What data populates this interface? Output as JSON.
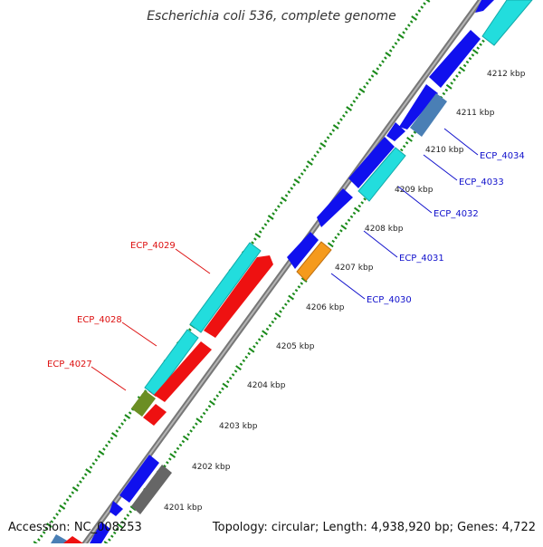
{
  "header": {
    "title": "Escherichia coli 536, complete genome"
  },
  "footer": {
    "accession": "Accession: NC_008253",
    "summary": "Topology: circular; Length: 4,938,920 bp; Genes: 4,722"
  },
  "colors": {
    "backbone": "#8c8c8c",
    "tick": "#1a8a1a",
    "blue": "#1010ee",
    "cyan": "#22dddd",
    "steel": "#4a7fb5",
    "orange": "#f59a1c",
    "red": "#ee1111",
    "olive": "#6b8e23",
    "gray": "#666666",
    "label_forward": "#dd1111",
    "label_reverse": "#1111cc"
  },
  "scale_labels": [
    "4201 kbp",
    "4202 kbp",
    "4203 kbp",
    "4204 kbp",
    "4205 kbp",
    "4206 kbp",
    "4207 kbp",
    "4208 kbp",
    "4209 kbp",
    "4210 kbp",
    "4211 kbp",
    "4212 kbp"
  ],
  "gene_labels": {
    "forward": [
      "ECP_4029",
      "ECP_4028",
      "ECP_4027"
    ],
    "reverse": [
      "ECP_4034",
      "ECP_4033",
      "ECP_4032",
      "ECP_4031",
      "ECP_4030"
    ]
  }
}
